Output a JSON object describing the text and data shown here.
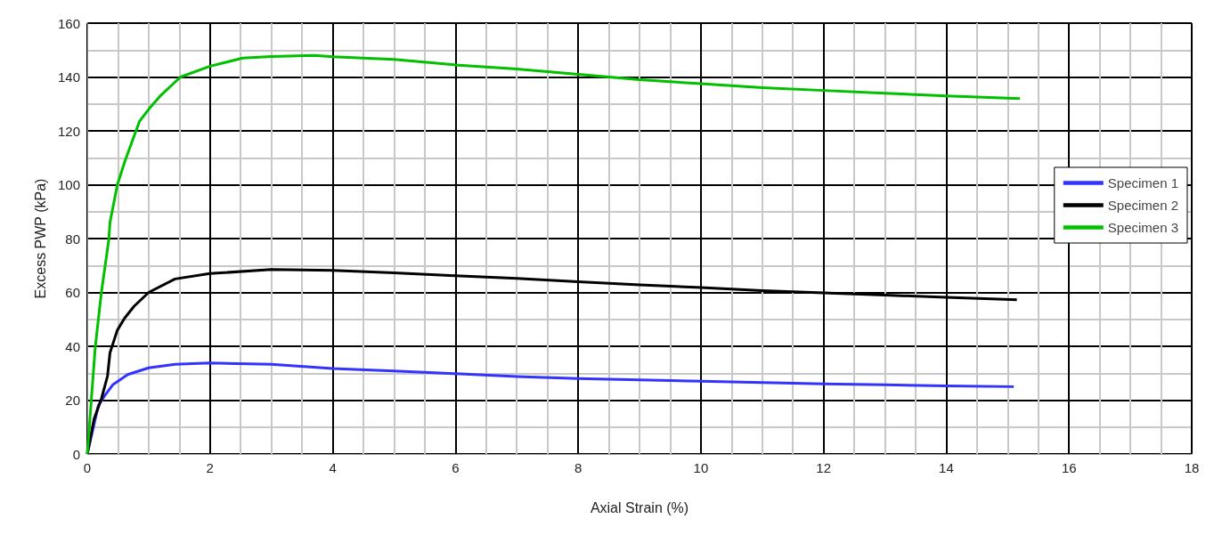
{
  "chart_data": {
    "type": "line",
    "xlabel": "Axial Strain (%)",
    "ylabel": "Excess PWP (kPa)",
    "xlim": [
      0,
      18
    ],
    "xticks": [
      0,
      2,
      4,
      6,
      8,
      10,
      12,
      14,
      16,
      18
    ],
    "ylim": [
      0,
      160
    ],
    "yticks": [
      0,
      20,
      40,
      60,
      80,
      100,
      120,
      140,
      160
    ],
    "grid": true,
    "legend": "right",
    "marker": "none",
    "line_style": "solid",
    "series": [
      {
        "name": "Specimen 1",
        "color": "#3333ff",
        "x": [
          0,
          0.18,
          0.28,
          0.42,
          0.66,
          1.0,
          1.43,
          2.0,
          3.0,
          4.0,
          5,
          6,
          7,
          8,
          9,
          10,
          11,
          12,
          13,
          14,
          15.1
        ],
        "values": [
          0,
          18,
          21.5,
          25.8,
          29.5,
          32,
          33.3,
          33.8,
          33.3,
          31.7,
          30.8,
          29.8,
          28.8,
          28,
          27.5,
          27,
          26.5,
          26,
          25.7,
          25.3,
          25
        ]
      },
      {
        "name": "Specimen 2",
        "color": "#000000",
        "x": [
          0,
          0.11,
          0.23,
          0.33,
          0.37,
          0.49,
          0.61,
          0.76,
          1.0,
          1.43,
          2.0,
          3.0,
          4.0,
          5,
          6,
          7,
          8,
          9,
          10,
          11,
          12,
          13,
          14,
          15.15
        ],
        "values": [
          0,
          13,
          20.5,
          29,
          37.6,
          46,
          50.5,
          54.8,
          60,
          65,
          67,
          68.5,
          68.2,
          67.3,
          66.2,
          65.2,
          64,
          62.8,
          61.8,
          60.7,
          59.8,
          59,
          58.2,
          57.3
        ]
      },
      {
        "name": "Specimen 3",
        "color": "#00c000",
        "x": [
          0,
          0.13,
          0.23,
          0.35,
          0.37,
          0.49,
          0.61,
          0.73,
          0.85,
          1.0,
          1.19,
          1.52,
          2.0,
          2.53,
          3.0,
          3.7,
          4,
          5,
          6,
          7,
          8,
          9,
          10,
          11,
          12,
          13,
          14,
          15.2
        ],
        "values": [
          0,
          39.7,
          60,
          79.5,
          86,
          100,
          108.5,
          116,
          123.5,
          128,
          133,
          140,
          144,
          147,
          147.6,
          148,
          147.5,
          146.5,
          144.5,
          143,
          141,
          139,
          137.5,
          136,
          135,
          134,
          133,
          132
        ]
      }
    ]
  }
}
